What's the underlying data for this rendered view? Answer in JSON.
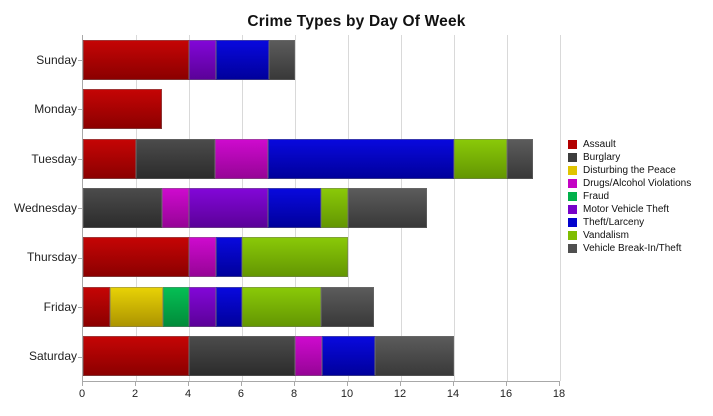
{
  "chart_data": {
    "type": "bar",
    "orientation": "horizontal",
    "stacked": true,
    "title": "Crime Types by Day Of Week",
    "xlabel": "",
    "ylabel": "",
    "xlim": [
      0,
      18
    ],
    "x_ticks": [
      0,
      2,
      4,
      6,
      8,
      10,
      12,
      14,
      16,
      18
    ],
    "grid": "vertical",
    "legend_position": "right",
    "categories": [
      "Sunday",
      "Monday",
      "Tuesday",
      "Wednesday",
      "Thursday",
      "Friday",
      "Saturday"
    ],
    "category_totals": [
      8,
      3,
      17,
      13,
      10,
      11,
      14
    ],
    "series": [
      {
        "name": "Assault",
        "color": "#b20000",
        "color_light": "#c60505",
        "color_dark": "#8a0000",
        "values": [
          4,
          3,
          2,
          0,
          4,
          1,
          4
        ]
      },
      {
        "name": "Burglary",
        "color": "#3d3d3d",
        "color_light": "#4c4c4c",
        "color_dark": "#2b2b2b",
        "values": [
          0,
          0,
          3,
          3,
          0,
          0,
          4
        ]
      },
      {
        "name": "Disturbing the Peace",
        "color": "#e0c400",
        "color_light": "#e9d306",
        "color_dark": "#ab9300",
        "values": [
          0,
          0,
          0,
          0,
          0,
          2,
          0
        ]
      },
      {
        "name": "Drugs/Alcohol Violations",
        "color": "#c303c3",
        "color_light": "#cf0acf",
        "color_dark": "#950495",
        "values": [
          0,
          0,
          2,
          1,
          1,
          0,
          1
        ]
      },
      {
        "name": "Fraud",
        "color": "#00b04a",
        "color_light": "#05c055",
        "color_dark": "#018a39",
        "values": [
          0,
          0,
          0,
          0,
          0,
          1,
          0
        ]
      },
      {
        "name": "Motor Vehicle Theft",
        "color": "#7702c9",
        "color_light": "#8307d9",
        "color_dark": "#5a0197",
        "values": [
          1,
          0,
          0,
          3,
          0,
          1,
          0
        ]
      },
      {
        "name": "Theft/Larceny",
        "color": "#0202cd",
        "color_light": "#0909df",
        "color_dark": "#00009a",
        "values": [
          2,
          0,
          7,
          2,
          1,
          1,
          2
        ]
      },
      {
        "name": "Vandalism",
        "color": "#7fbd02",
        "color_light": "#8bca08",
        "color_dark": "#639502",
        "values": [
          0,
          0,
          2,
          1,
          4,
          3,
          0
        ]
      },
      {
        "name": "Vehicle Break-In/Theft",
        "color": "#4f4f4f",
        "color_light": "#5c5c5c",
        "color_dark": "#383838",
        "values": [
          1,
          0,
          1,
          3,
          0,
          2,
          3
        ]
      }
    ]
  }
}
